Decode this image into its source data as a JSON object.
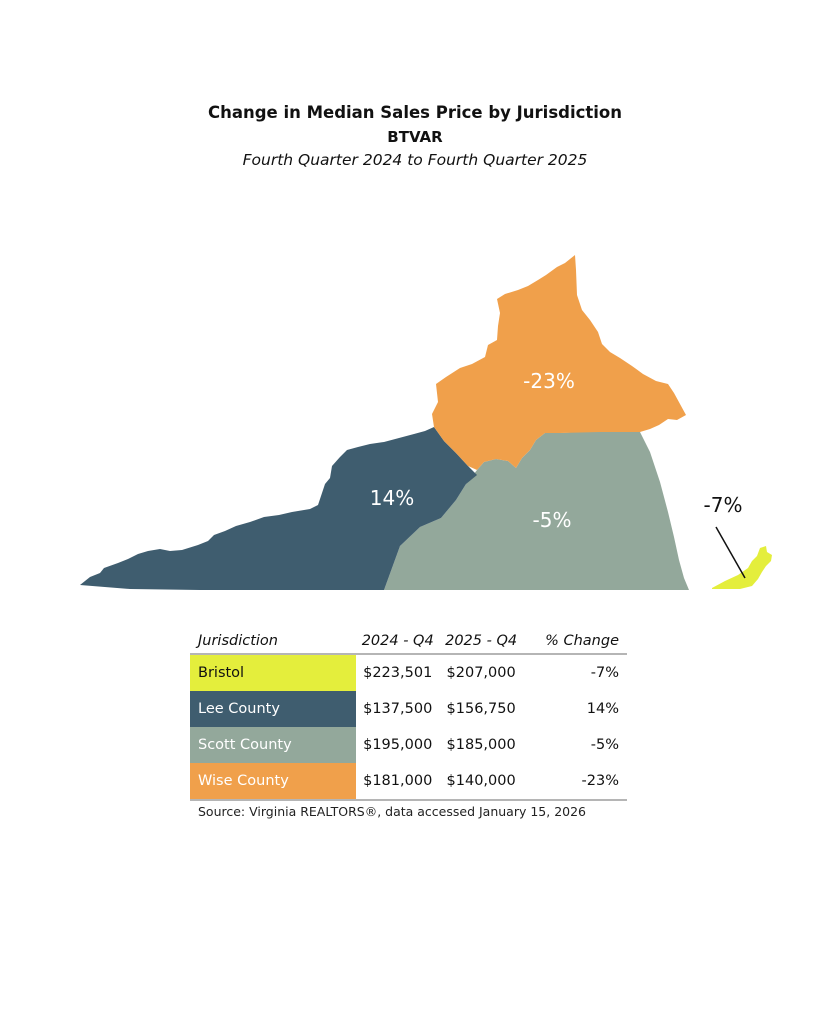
{
  "header": {
    "title": "Change in Median Sales Price by Jurisdiction",
    "subtitle": "BTVAR",
    "period": "Fourth Quarter 2024 to Fourth Quarter 2025"
  },
  "map": {
    "regions": [
      {
        "name": "Lee County",
        "label": "14%",
        "color": "#3f5d6f"
      },
      {
        "name": "Scott County",
        "label": "-5%",
        "color": "#93a89b"
      },
      {
        "name": "Wise County",
        "label": "-23%",
        "color": "#f0a04b"
      },
      {
        "name": "Bristol",
        "label": "-7%",
        "color": "#e4ee3c"
      }
    ],
    "region_label_color": "#ffffff",
    "callout_label_color": "#111111"
  },
  "table": {
    "headers": [
      "Jurisdiction",
      "2024 - Q4",
      "2025 - Q4",
      "% Change"
    ],
    "rows": [
      {
        "jurisdiction": "Bristol",
        "q4_2024": "$223,501",
        "q4_2025": "$207,000",
        "change": "-7%",
        "color": "#e4ee3c",
        "text_color": "#111111"
      },
      {
        "jurisdiction": "Lee County",
        "q4_2024": "$137,500",
        "q4_2025": "$156,750",
        "change": "14%",
        "color": "#3f5d6f",
        "text_color": "#ffffff"
      },
      {
        "jurisdiction": "Scott County",
        "q4_2024": "$195,000",
        "q4_2025": "$185,000",
        "change": "-5%",
        "color": "#93a89b",
        "text_color": "#ffffff"
      },
      {
        "jurisdiction": "Wise County",
        "q4_2024": "$181,000",
        "q4_2025": "$140,000",
        "change": "-23%",
        "color": "#f0a04b",
        "text_color": "#ffffff"
      }
    ]
  },
  "footer": {
    "source": "Source: Virginia REALTORS®, data accessed January 15, 2026"
  }
}
